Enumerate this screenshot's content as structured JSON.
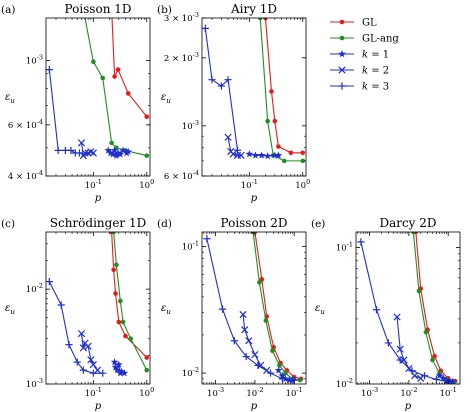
{
  "colors": {
    "gl": "#e41a1c",
    "gl_ang": "#1f8f1f",
    "k": "#1f2fd0"
  },
  "legend": [
    {
      "label": "GL",
      "color": "#e41a1c",
      "marker": "circle"
    },
    {
      "label": "GL-ang",
      "color": "#1f8f1f",
      "marker": "circle"
    },
    {
      "label": "k = 1",
      "color": "#1f2fd0",
      "marker": "star"
    },
    {
      "label": "k = 2",
      "color": "#1f2fd0",
      "marker": "x"
    },
    {
      "label": "k = 3",
      "color": "#1f2fd0",
      "marker": "plus"
    }
  ],
  "chart_data": [
    {
      "type": "line",
      "panel": "(a)",
      "title": "Poisson 1D",
      "xlabel": "p",
      "ylabel": "ε_u",
      "xscale": "log",
      "yscale": "log",
      "xlim": [
        0.013,
        1.15
      ],
      "ylim": [
        0.0004,
        0.0014
      ],
      "xticks": [
        {
          "v": 0.1,
          "label": "10^-1"
        },
        {
          "v": 1,
          "label": "10^0"
        }
      ],
      "yticks": [
        {
          "v": 0.0004,
          "label": "4 × 10^-4"
        },
        {
          "v": 0.0006,
          "label": "6 × 10^-4"
        },
        {
          "v": 0.001,
          "label": "10^-3"
        }
      ],
      "series": [
        {
          "name": "GL",
          "marker": "circle",
          "color": "#e41a1c",
          "x": [
            0.22,
            0.25,
            0.29,
            0.45,
            1.0
          ],
          "y": [
            0.0015,
            0.00088,
            0.00093,
            0.00077,
            0.00064
          ]
        },
        {
          "name": "GL-ang",
          "marker": "circle",
          "color": "#1f8f1f",
          "x": [
            0.065,
            0.1,
            0.15,
            0.22,
            0.27,
            0.4,
            1.0
          ],
          "y": [
            0.0015,
            0.00099,
            0.00087,
            0.00052,
            0.0005,
            0.00049,
            0.00047
          ]
        },
        {
          "name": "k = 1",
          "marker": "star",
          "color": "#1f2fd0",
          "x": [
            0.19,
            0.21,
            0.23,
            0.25,
            0.27,
            0.29,
            0.32,
            0.36,
            0.42,
            0.45
          ],
          "y": [
            0.00049,
            0.00048,
            0.000475,
            0.00049,
            0.00047,
            0.00048,
            0.000475,
            0.00049,
            0.00048,
            0.000485
          ]
        },
        {
          "name": "k = 2",
          "marker": "x",
          "color": "#1f2fd0",
          "x": [
            0.06,
            0.065,
            0.07,
            0.08,
            0.09,
            0.1
          ],
          "y": [
            0.00052,
            0.00047,
            0.00048,
            0.00048,
            0.000485,
            0.00048
          ]
        },
        {
          "name": "k = 3",
          "marker": "plus",
          "color": "#1f2fd0",
          "x": [
            0.015,
            0.022,
            0.03,
            0.038,
            0.046,
            0.055
          ],
          "y": [
            0.00093,
            0.00049,
            0.00049,
            0.00049,
            0.00048,
            0.00048
          ]
        }
      ]
    },
    {
      "type": "line",
      "panel": "(b)",
      "title": "Airy 1D",
      "xlabel": "p",
      "ylabel": "ε_u",
      "xscale": "log",
      "yscale": "log",
      "xlim": [
        0.013,
        1.15
      ],
      "ylim": [
        0.0006,
        0.003
      ],
      "xticks": [
        {
          "v": 0.1,
          "label": "10^-1"
        },
        {
          "v": 1,
          "label": "10^0"
        }
      ],
      "yticks": [
        {
          "v": 0.0006,
          "label": "6 × 10^-4"
        },
        {
          "v": 0.001,
          "label": "10^-3"
        },
        {
          "v": 0.002,
          "label": "2 × 10^-3"
        },
        {
          "v": 0.003,
          "label": "3 × 10^-3"
        }
      ],
      "series": [
        {
          "name": "GL",
          "marker": "circle",
          "color": "#e41a1c",
          "x": [
            0.2,
            0.26,
            0.3,
            0.35,
            0.6,
            1.0
          ],
          "y": [
            0.003,
            0.00142,
            0.00105,
            0.00081,
            0.00076,
            0.00076
          ]
        },
        {
          "name": "GL-ang",
          "marker": "circle",
          "color": "#1f8f1f",
          "x": [
            0.16,
            0.22,
            0.28,
            0.45,
            1.0
          ],
          "y": [
            0.003,
            0.00105,
            0.00074,
            0.0007,
            0.0007
          ]
        },
        {
          "name": "k = 1",
          "marker": "star",
          "color": "#1f2fd0",
          "x": [
            0.1,
            0.13,
            0.17,
            0.22,
            0.3,
            0.35
          ],
          "y": [
            0.00075,
            0.00074,
            0.00074,
            0.000735,
            0.00074,
            0.00074
          ]
        },
        {
          "name": "k = 2",
          "marker": "x",
          "color": "#1f2fd0",
          "x": [
            0.04,
            0.045,
            0.05,
            0.06,
            0.07
          ],
          "y": [
            0.00089,
            0.00077,
            0.00075,
            0.00074,
            0.00074
          ]
        },
        {
          "name": "k = 3",
          "marker": "plus",
          "color": "#1f2fd0",
          "x": [
            0.015,
            0.02,
            0.03,
            0.04,
            0.06
          ],
          "y": [
            0.0027,
            0.0016,
            0.0015,
            0.0016,
            0.00078
          ]
        }
      ]
    },
    {
      "type": "line",
      "panel": "(c)",
      "title": "Schrödinger 1D",
      "xlabel": "p",
      "ylabel": "ε_u",
      "xscale": "log",
      "yscale": "log",
      "xlim": [
        0.013,
        1.15
      ],
      "ylim": [
        0.001,
        0.04
      ],
      "xticks": [
        {
          "v": 0.1,
          "label": "10^-1"
        },
        {
          "v": 1,
          "label": "10^0"
        }
      ],
      "yticks": [
        {
          "v": 0.001,
          "label": "10^-3"
        },
        {
          "v": 0.01,
          "label": "10^-2"
        }
      ],
      "series": [
        {
          "name": "GL",
          "marker": "circle",
          "color": "#e41a1c",
          "x": [
            0.22,
            0.24,
            0.26,
            0.3,
            0.4,
            1.0
          ],
          "y": [
            0.04,
            0.016,
            0.009,
            0.0045,
            0.0032,
            0.0019
          ]
        },
        {
          "name": "GL-ang",
          "marker": "circle",
          "color": "#1f8f1f",
          "x": [
            0.24,
            0.27,
            0.32,
            0.36,
            0.5,
            1.0
          ],
          "y": [
            0.04,
            0.018,
            0.0075,
            0.0045,
            0.003,
            0.0014
          ]
        },
        {
          "name": "k = 1",
          "marker": "star",
          "color": "#1f2fd0",
          "x": [
            0.25,
            0.26,
            0.28,
            0.3,
            0.32,
            0.34,
            0.38
          ],
          "y": [
            0.0017,
            0.0015,
            0.0014,
            0.0016,
            0.0013,
            0.00135,
            0.0013
          ]
        },
        {
          "name": "k = 2",
          "marker": "x",
          "color": "#1f2fd0",
          "x": [
            0.06,
            0.065,
            0.07,
            0.08,
            0.09,
            0.1,
            0.12
          ],
          "y": [
            0.0034,
            0.0024,
            0.0027,
            0.0025,
            0.0018,
            0.0016,
            0.0014
          ]
        },
        {
          "name": "k = 3",
          "marker": "plus",
          "color": "#1f2fd0",
          "x": [
            0.015,
            0.025,
            0.035,
            0.05,
            0.065,
            0.1,
            0.15
          ],
          "y": [
            0.012,
            0.0068,
            0.0026,
            0.0017,
            0.0014,
            0.0013,
            0.0013
          ]
        }
      ]
    },
    {
      "type": "line",
      "panel": "(d)",
      "title": "Poisson 2D",
      "xlabel": "p",
      "ylabel": "ε_u",
      "xscale": "log",
      "yscale": "log",
      "xlim": [
        0.00045,
        0.2
      ],
      "ylim": [
        0.0082,
        0.13
      ],
      "xticks": [
        {
          "v": 0.001,
          "label": "10^-3"
        },
        {
          "v": 0.01,
          "label": "10^-2"
        },
        {
          "v": 0.1,
          "label": "10^-1"
        }
      ],
      "yticks": [
        {
          "v": 0.01,
          "label": "10^-2"
        },
        {
          "v": 0.1,
          "label": "10^-1"
        }
      ],
      "series": [
        {
          "name": "GL",
          "marker": "circle",
          "color": "#e41a1c",
          "x": [
            0.01,
            0.015,
            0.02,
            0.03,
            0.045,
            0.065,
            0.1,
            0.15
          ],
          "y": [
            0.13,
            0.055,
            0.028,
            0.016,
            0.012,
            0.0105,
            0.0093,
            0.009
          ]
        },
        {
          "name": "GL-ang",
          "marker": "circle",
          "color": "#1f8f1f",
          "x": [
            0.009,
            0.013,
            0.019,
            0.028,
            0.042,
            0.06,
            0.09,
            0.14
          ],
          "y": [
            0.13,
            0.052,
            0.026,
            0.015,
            0.0115,
            0.01,
            0.009,
            0.0088
          ]
        },
        {
          "name": "k = 1",
          "marker": "star",
          "color": "#1f2fd0",
          "x": [
            0.04,
            0.05,
            0.06,
            0.075,
            0.09
          ],
          "y": [
            0.0105,
            0.0095,
            0.009,
            0.0088,
            0.0088
          ]
        },
        {
          "name": "k = 2",
          "marker": "x",
          "color": "#1f2fd0",
          "x": [
            0.005,
            0.0055,
            0.007,
            0.01,
            0.014,
            0.02
          ],
          "y": [
            0.029,
            0.022,
            0.018,
            0.014,
            0.0115,
            0.0105
          ]
        },
        {
          "name": "k = 3",
          "marker": "plus",
          "color": "#1f2fd0",
          "x": [
            0.0006,
            0.0015,
            0.003,
            0.006,
            0.012,
            0.025,
            0.05,
            0.1
          ],
          "y": [
            0.115,
            0.032,
            0.018,
            0.0135,
            0.0115,
            0.01,
            0.009,
            0.0088
          ]
        }
      ]
    },
    {
      "type": "line",
      "panel": "(e)",
      "title": "Darcy 2D",
      "xlabel": "p",
      "ylabel": "ε_u",
      "xscale": "log",
      "yscale": "log",
      "xlim": [
        0.00045,
        0.2
      ],
      "ylim": [
        0.01,
        0.13
      ],
      "xticks": [
        {
          "v": 0.001,
          "label": "10^-3"
        },
        {
          "v": 0.01,
          "label": "10^-2"
        },
        {
          "v": 0.1,
          "label": "10^-1"
        }
      ],
      "yticks": [
        {
          "v": 0.01,
          "label": "10^-2"
        },
        {
          "v": 0.1,
          "label": "10^-1"
        }
      ],
      "series": [
        {
          "name": "GL",
          "marker": "circle",
          "color": "#e41a1c",
          "x": [
            0.015,
            0.02,
            0.03,
            0.045,
            0.065,
            0.1,
            0.15
          ],
          "y": [
            0.13,
            0.05,
            0.025,
            0.016,
            0.0125,
            0.011,
            0.0105
          ]
        },
        {
          "name": "GL-ang",
          "marker": "circle",
          "color": "#1f8f1f",
          "x": [
            0.013,
            0.018,
            0.027,
            0.04,
            0.06,
            0.09,
            0.14
          ],
          "y": [
            0.13,
            0.048,
            0.024,
            0.015,
            0.012,
            0.0108,
            0.0104
          ]
        },
        {
          "name": "k = 1",
          "marker": "star",
          "color": "#1f2fd0",
          "x": [
            0.06,
            0.075,
            0.09,
            0.11,
            0.13
          ],
          "y": [
            0.0115,
            0.011,
            0.0105,
            0.0104,
            0.0104
          ]
        },
        {
          "name": "k = 2",
          "marker": "x",
          "color": "#1f2fd0",
          "x": [
            0.005,
            0.006,
            0.0075,
            0.01,
            0.014,
            0.02
          ],
          "y": [
            0.031,
            0.018,
            0.015,
            0.013,
            0.0115,
            0.011
          ]
        },
        {
          "name": "k = 3",
          "marker": "plus",
          "color": "#1f2fd0",
          "x": [
            0.0006,
            0.0015,
            0.003,
            0.006,
            0.012,
            0.025,
            0.05,
            0.1
          ],
          "y": [
            0.11,
            0.035,
            0.02,
            0.015,
            0.0125,
            0.0115,
            0.0108,
            0.0104
          ]
        }
      ]
    }
  ]
}
